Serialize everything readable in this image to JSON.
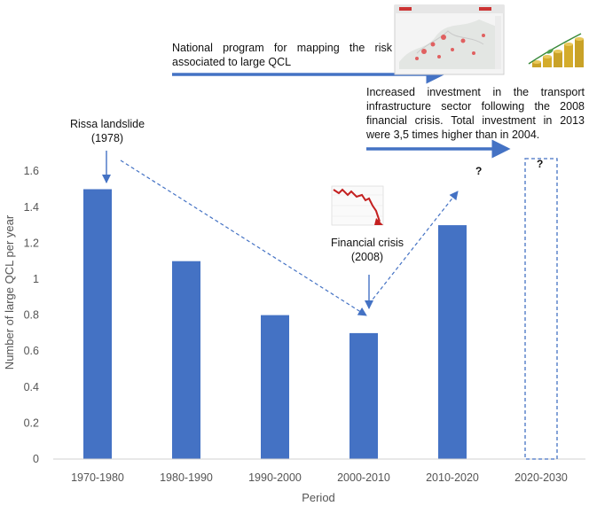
{
  "chart_data": {
    "type": "bar",
    "categories": [
      "1970-1980",
      "1980-1990",
      "1990-2000",
      "2000-2010",
      "2010-2020",
      "2020-2030"
    ],
    "values": [
      1.5,
      1.1,
      0.8,
      0.7,
      1.3,
      null
    ],
    "ylim": [
      0,
      1.7
    ],
    "yticks": [
      "0",
      "0.2",
      "0.4",
      "0.6",
      "0.8",
      "1",
      "1.2",
      "1.4",
      "1.6"
    ],
    "xlabel": "Period",
    "ylabel": "Number of large QCL per year",
    "grid": false,
    "series_color": "#4472C4",
    "placeholder": {
      "category": "2020-2030",
      "value": 1.67,
      "label": "?"
    }
  },
  "annotations": {
    "rissa": {
      "line1": "Rissa landslide",
      "line2": "(1978)"
    },
    "financial": {
      "line1": "Financial crisis",
      "line2": "(2008)"
    },
    "national_program": "National program for mapping the risk associated to large QCL",
    "investment": "Increased investment in the transport infrastructure sector following the 2008 financial crisis. Total investment in 2013 were 3,5 times higher than in 2004.",
    "question_trend": "?",
    "question_bar": "?"
  },
  "icons": [
    "risk-map-thumbnail-icon",
    "coin-stacks-icon",
    "falling-stock-chart-icon"
  ],
  "colors": {
    "arrow": "#4472C4",
    "dashed": "#4472C4"
  }
}
